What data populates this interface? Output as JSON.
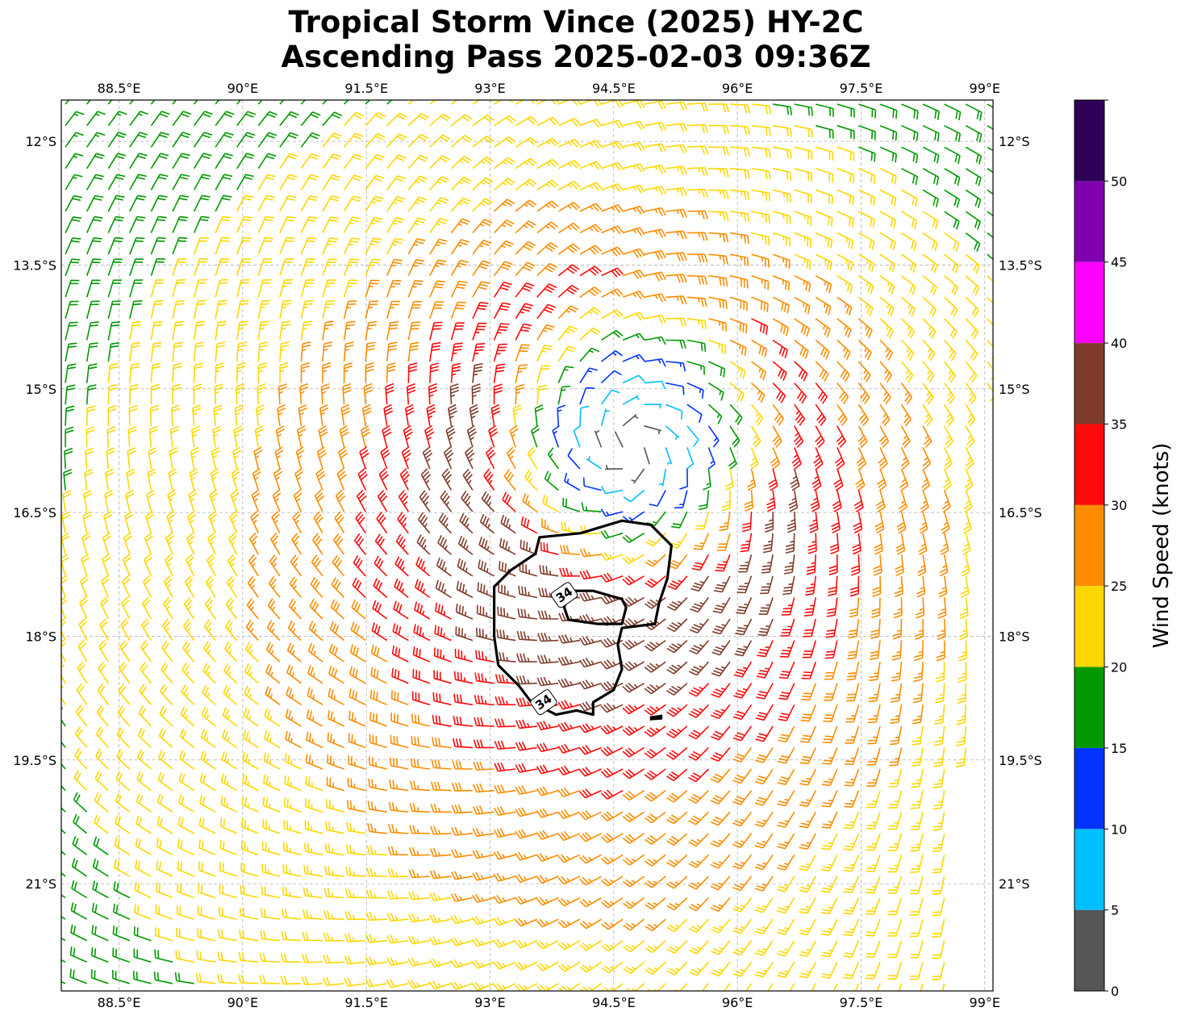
{
  "title": {
    "line1": "Tropical Storm Vince (2025) HY-2C",
    "line2": "Ascending Pass 2025-02-03 09:36Z"
  },
  "map": {
    "lon_range": [
      87.8,
      99.1
    ],
    "lat_range": [
      -22.3,
      -11.5
    ],
    "lon_ticks": [
      {
        "value": 88.5,
        "label": "88.5°E"
      },
      {
        "value": 90.0,
        "label": "90°E"
      },
      {
        "value": 91.5,
        "label": "91.5°E"
      },
      {
        "value": 93.0,
        "label": "93°E"
      },
      {
        "value": 94.5,
        "label": "94.5°E"
      },
      {
        "value": 96.0,
        "label": "96°E"
      },
      {
        "value": 97.5,
        "label": "97.5°E"
      },
      {
        "value": 99.0,
        "label": "99°E"
      }
    ],
    "lat_ticks": [
      {
        "value": -12.0,
        "label": "12°S"
      },
      {
        "value": -13.5,
        "label": "13.5°S"
      },
      {
        "value": -15.0,
        "label": "15°S"
      },
      {
        "value": -16.5,
        "label": "16.5°S"
      },
      {
        "value": -18.0,
        "label": "18°S"
      },
      {
        "value": -19.5,
        "label": "19.5°S"
      },
      {
        "value": -21.0,
        "label": "21°S"
      }
    ],
    "grid": true,
    "storm_center": {
      "lon": 94.7,
      "lat": -15.7
    },
    "max_wind_kt": 37,
    "swath_edges": {
      "west_lon_at_north": 87.8,
      "east_lon_at_south": 98.6
    },
    "contour": {
      "level_label": "34",
      "outer": [
        [
          93.6,
          -16.8
        ],
        [
          94.1,
          -16.75
        ],
        [
          94.6,
          -16.6
        ],
        [
          94.95,
          -16.65
        ],
        [
          95.2,
          -16.9
        ],
        [
          95.15,
          -17.3
        ],
        [
          95.05,
          -17.6
        ],
        [
          95.0,
          -17.85
        ],
        [
          94.6,
          -17.9
        ],
        [
          94.55,
          -18.1
        ],
        [
          94.6,
          -18.4
        ],
        [
          94.5,
          -18.65
        ],
        [
          94.25,
          -18.8
        ],
        [
          94.25,
          -18.95
        ],
        [
          94.05,
          -18.9
        ],
        [
          93.8,
          -18.95
        ],
        [
          93.5,
          -18.8
        ],
        [
          93.35,
          -18.6
        ],
        [
          93.1,
          -18.35
        ],
        [
          93.05,
          -18.0
        ],
        [
          93.05,
          -17.6
        ],
        [
          93.05,
          -17.4
        ],
        [
          93.25,
          -17.2
        ],
        [
          93.55,
          -17.0
        ],
        [
          93.6,
          -16.8
        ]
      ],
      "inner": [
        [
          93.95,
          -17.45
        ],
        [
          94.25,
          -17.45
        ],
        [
          94.6,
          -17.55
        ],
        [
          94.65,
          -17.65
        ],
        [
          94.6,
          -17.85
        ],
        [
          94.3,
          -17.85
        ],
        [
          93.95,
          -17.8
        ],
        [
          93.9,
          -17.65
        ],
        [
          93.95,
          -17.45
        ]
      ],
      "blob": [
        [
          94.95,
          -18.98
        ],
        [
          95.08,
          -18.96
        ],
        [
          95.08,
          -19.0
        ],
        [
          94.95,
          -19.01
        ]
      ],
      "label_positions": [
        {
          "lon": 93.9,
          "lat": -17.5
        },
        {
          "lon": 93.65,
          "lat": -18.8
        }
      ]
    }
  },
  "colorbar": {
    "label": "Wind Speed (knots)",
    "bins": [
      {
        "from": 0,
        "to": 5,
        "color": "#555555"
      },
      {
        "from": 5,
        "to": 10,
        "color": "#00bfff"
      },
      {
        "from": 10,
        "to": 15,
        "color": "#0033ff"
      },
      {
        "from": 15,
        "to": 20,
        "color": "#009900"
      },
      {
        "from": 20,
        "to": 25,
        "color": "#ffd700"
      },
      {
        "from": 25,
        "to": 30,
        "color": "#ff8c00"
      },
      {
        "from": 30,
        "to": 35,
        "color": "#ff0a0a"
      },
      {
        "from": 35,
        "to": 40,
        "color": "#7f3b2a"
      },
      {
        "from": 40,
        "to": 45,
        "color": "#ff00ff"
      },
      {
        "from": 45,
        "to": 50,
        "color": "#8000b0"
      },
      {
        "from": 50,
        "to": 55,
        "color": "#2e0057"
      }
    ],
    "tick_labels": [
      "0",
      "5",
      "10",
      "15",
      "20",
      "25",
      "30",
      "35",
      "40",
      "45",
      "50"
    ],
    "legend_placement": "right"
  }
}
